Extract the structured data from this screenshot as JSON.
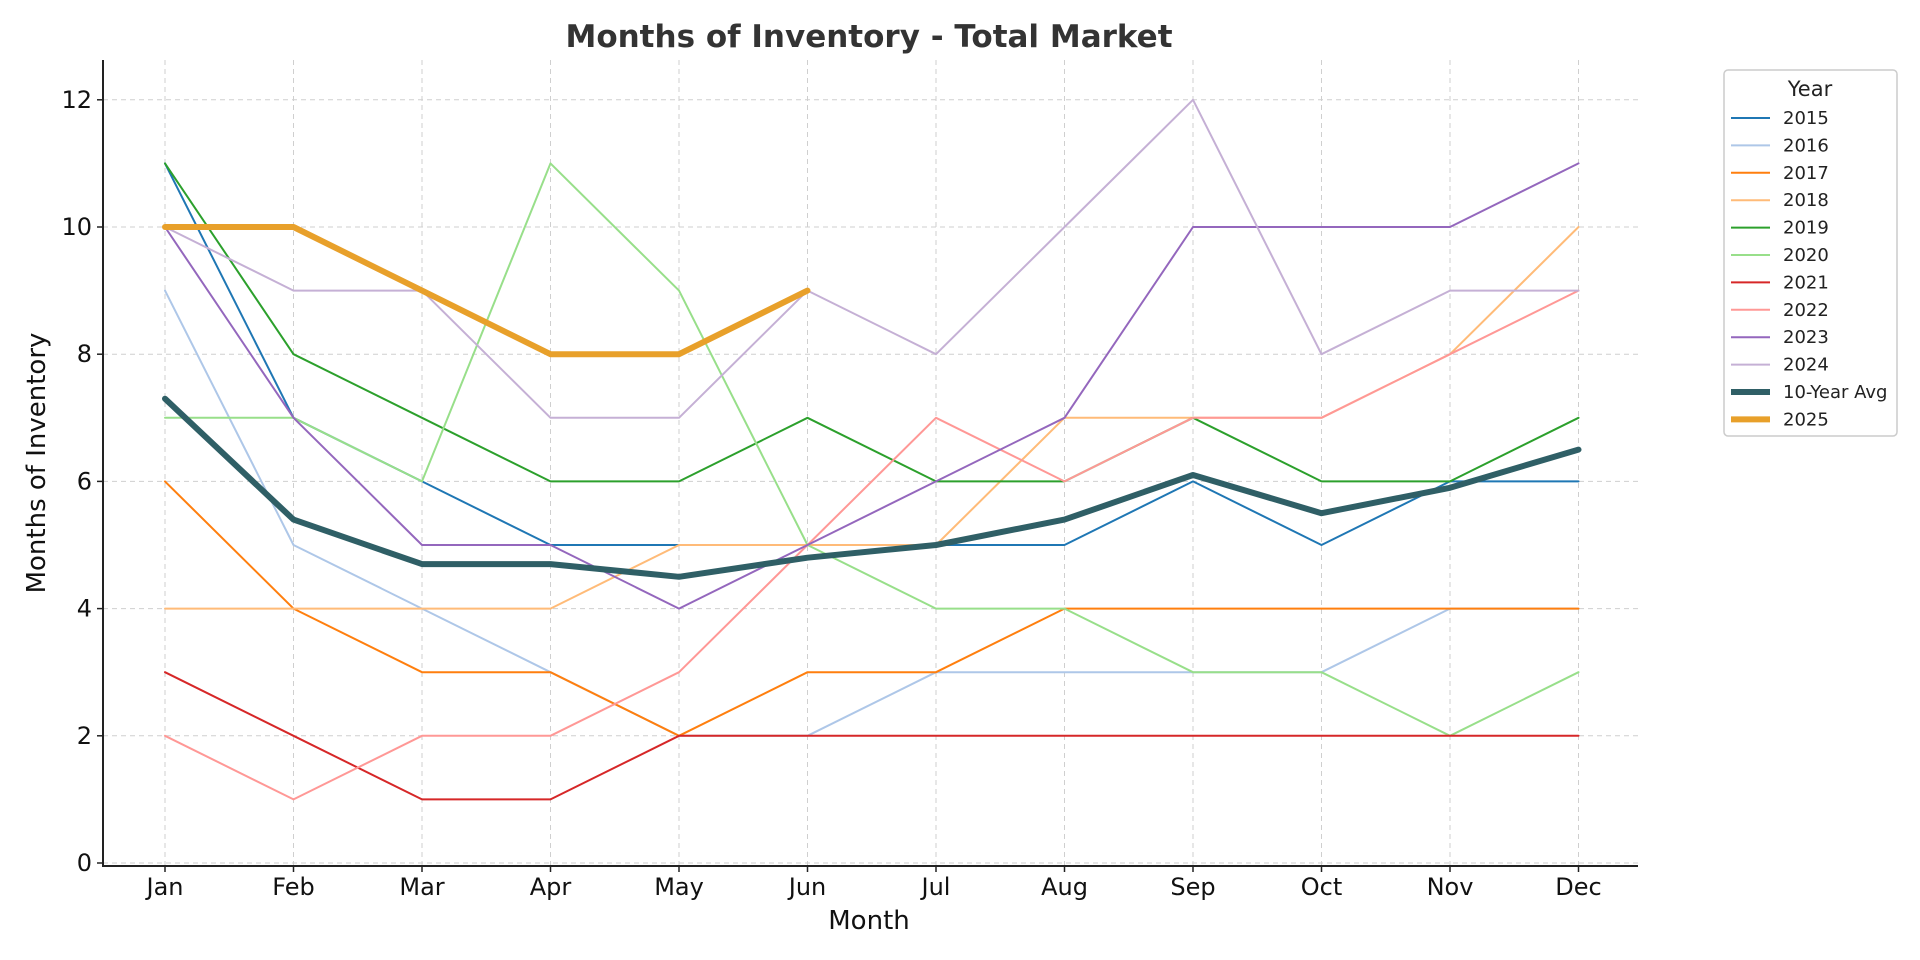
{
  "chart_data": {
    "type": "line",
    "title": "Months of Inventory - Total Market",
    "xlabel": "Month",
    "ylabel": "Months of Inventory",
    "categories": [
      "Jan",
      "Feb",
      "Mar",
      "Apr",
      "May",
      "Jun",
      "Jul",
      "Aug",
      "Sep",
      "Oct",
      "Nov",
      "Dec"
    ],
    "ylim": [
      0,
      12.6
    ],
    "yticks": [
      0,
      2,
      4,
      6,
      8,
      10,
      12
    ],
    "grid": true,
    "legend": {
      "title": "Year",
      "placement": "outside-top-right"
    },
    "series": [
      {
        "name": "2015",
        "color": "#1f77b4",
        "width": 2,
        "values": [
          11,
          7,
          6,
          5,
          5,
          5,
          5,
          5,
          6,
          5,
          6,
          6
        ]
      },
      {
        "name": "2016",
        "color": "#aec7e8",
        "width": 2,
        "values": [
          9,
          5,
          4,
          3,
          2,
          2,
          3,
          3,
          3,
          3,
          4,
          4
        ]
      },
      {
        "name": "2017",
        "color": "#ff7f0e",
        "width": 2,
        "values": [
          6,
          4,
          3,
          3,
          2,
          3,
          3,
          4,
          4,
          4,
          4,
          4
        ]
      },
      {
        "name": "2018",
        "color": "#ffbb78",
        "width": 2,
        "values": [
          4,
          4,
          4,
          4,
          5,
          5,
          5,
          7,
          7,
          7,
          8,
          10
        ]
      },
      {
        "name": "2019",
        "color": "#2ca02c",
        "width": 2,
        "values": [
          11,
          8,
          7,
          6,
          6,
          7,
          6,
          6,
          7,
          6,
          6,
          7
        ]
      },
      {
        "name": "2020",
        "color": "#98df8a",
        "width": 2,
        "values": [
          7,
          7,
          6,
          11,
          9,
          5,
          4,
          4,
          3,
          3,
          2,
          3
        ]
      },
      {
        "name": "2021",
        "color": "#d62728",
        "width": 2,
        "values": [
          3,
          2,
          1,
          1,
          2,
          2,
          2,
          2,
          2,
          2,
          2,
          2
        ]
      },
      {
        "name": "2022",
        "color": "#ff9896",
        "width": 2,
        "values": [
          2,
          1,
          2,
          2,
          3,
          5,
          7,
          6,
          7,
          7,
          8,
          9
        ]
      },
      {
        "name": "2023",
        "color": "#9467bd",
        "width": 2,
        "values": [
          10,
          7,
          5,
          5,
          4,
          5,
          6,
          7,
          10,
          10,
          10,
          11
        ]
      },
      {
        "name": "2024",
        "color": "#c5b0d5",
        "width": 2,
        "values": [
          10,
          9,
          9,
          7,
          7,
          9,
          8,
          10,
          12,
          8,
          9,
          9
        ]
      },
      {
        "name": "10-Year Avg",
        "color": "#2f5f66",
        "width": 6,
        "values": [
          7.3,
          5.4,
          4.7,
          4.7,
          4.5,
          4.8,
          5.0,
          5.4,
          6.1,
          5.5,
          5.9,
          6.5
        ]
      },
      {
        "name": "2025",
        "color": "#e8a02a",
        "width": 6,
        "values": [
          10,
          10,
          9,
          8,
          8,
          9,
          null,
          null,
          null,
          null,
          null,
          null
        ]
      }
    ]
  }
}
